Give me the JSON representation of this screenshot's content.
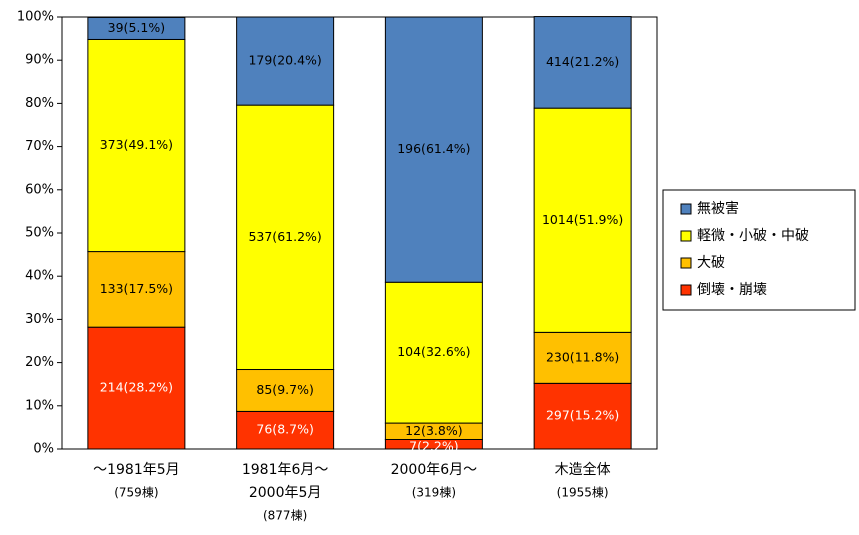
{
  "chart_data": {
    "type": "stacked_bar_100",
    "categories": [
      [
        "〜1981年5月",
        "(759棟)"
      ],
      [
        "1981年6月〜",
        "2000年5月",
        "(877棟)"
      ],
      [
        "2000年6月〜",
        "(319棟)"
      ],
      [
        "木造全体",
        "(1955棟)"
      ]
    ],
    "series": [
      {
        "name": "倒壊・崩壊",
        "color": "#ff3300",
        "values": [
          28.2,
          8.7,
          2.2,
          15.2
        ],
        "value_labels": [
          "214(28.2%)",
          "76(8.7%)",
          "7(2.2%)",
          "297(15.2%)"
        ]
      },
      {
        "name": "大破",
        "color": "#ffc000",
        "values": [
          17.5,
          9.7,
          3.8,
          11.8
        ],
        "value_labels": [
          "133(17.5%)",
          "85(9.7%)",
          "12(3.8%)",
          "230(11.8%)"
        ]
      },
      {
        "name": "軽微・小破・中破",
        "color": "#ffff00",
        "values": [
          49.1,
          61.2,
          32.6,
          51.9
        ],
        "value_labels": [
          "373(49.1%)",
          "537(61.2%)",
          "104(32.6%)",
          "1014(51.9%)"
        ]
      },
      {
        "name": "無被害",
        "color": "#4f81bd",
        "values": [
          5.1,
          20.4,
          61.4,
          21.2
        ],
        "value_labels": [
          "39(5.1%)",
          "179(20.4%)",
          "196(61.4%)",
          "414(21.2%)"
        ]
      }
    ],
    "ylim": [
      0,
      100
    ],
    "yticks": [
      {
        "value": 0,
        "label": "0%"
      },
      {
        "value": 10,
        "label": "10%"
      },
      {
        "value": 20,
        "label": "20%"
      },
      {
        "value": 30,
        "label": "30%"
      },
      {
        "value": 40,
        "label": "40%"
      },
      {
        "value": 50,
        "label": "50%"
      },
      {
        "value": 60,
        "label": "60%"
      },
      {
        "value": 70,
        "label": "70%"
      },
      {
        "value": 80,
        "label": "80%"
      },
      {
        "value": 90,
        "label": "90%"
      },
      {
        "value": 100,
        "label": "100%"
      }
    ],
    "legend": "right"
  }
}
